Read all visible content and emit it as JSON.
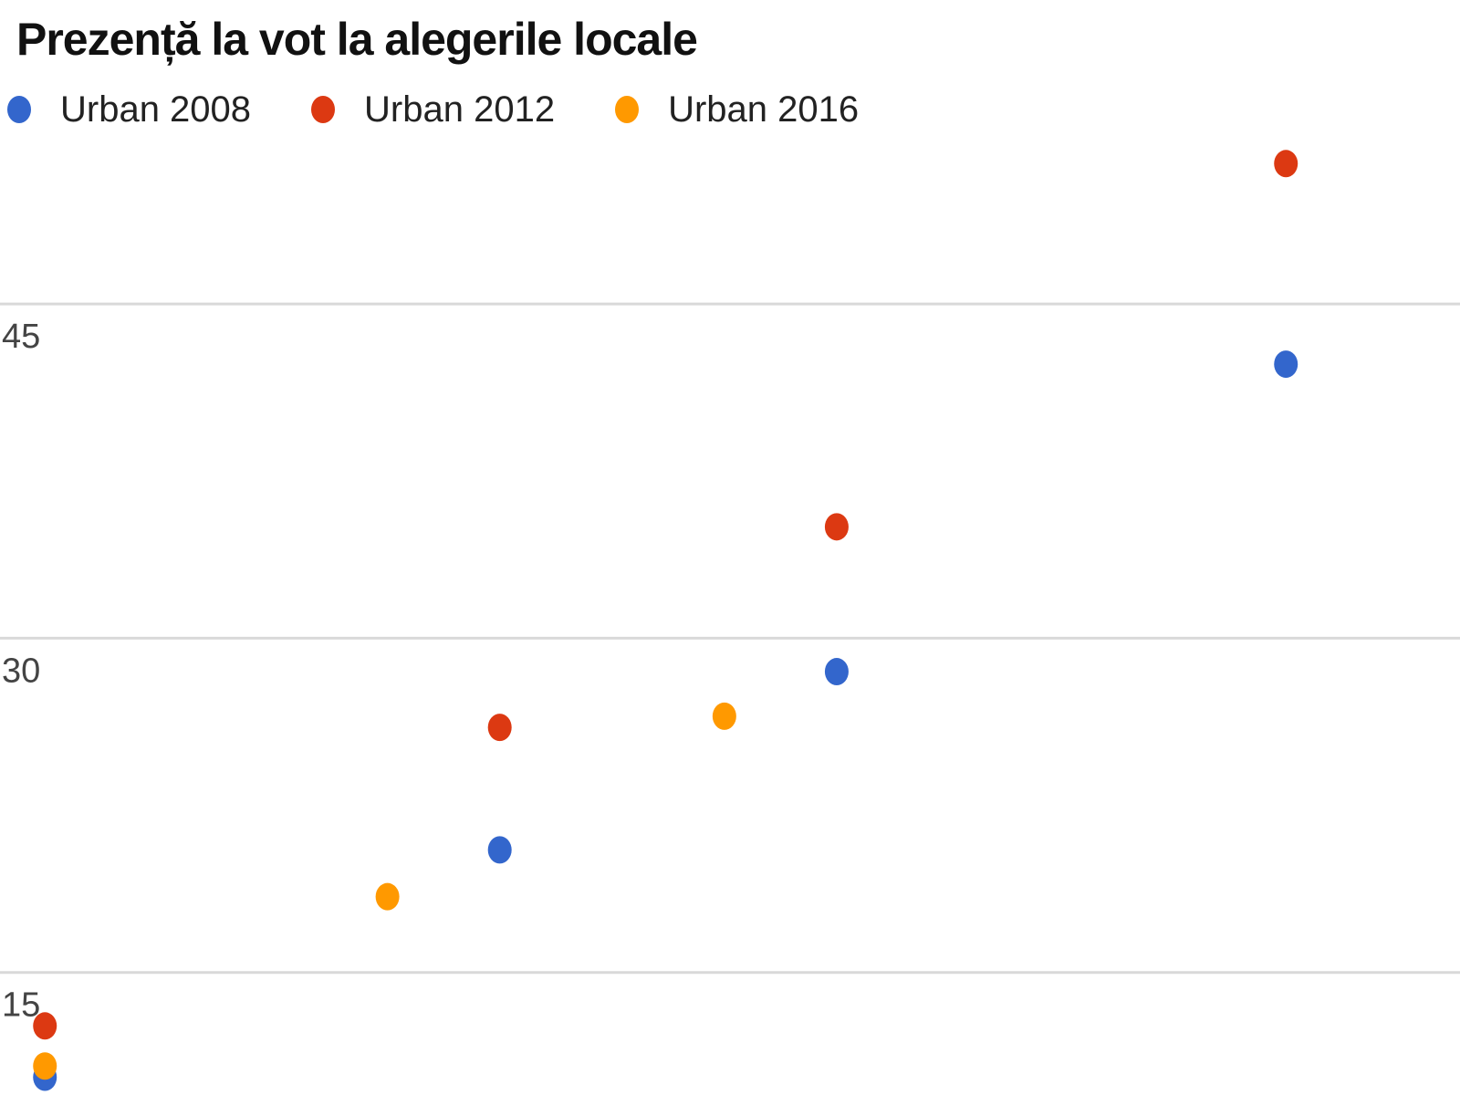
{
  "chart_data": {
    "type": "scatter",
    "title": "Prezență la vot la alegerile locale",
    "xlabel": "",
    "ylabel": "",
    "ylim": [
      9.5,
      52.5
    ],
    "yticks": [
      15,
      30,
      45
    ],
    "xlim": [
      0,
      13
    ],
    "grid": true,
    "legend_position": "top-left",
    "series": [
      {
        "name": "Urban 2008",
        "color": "#3366cc",
        "x": [
          0.4,
          4.45,
          7.45,
          11.45
        ],
        "y": [
          10.3,
          20.5,
          28.5,
          42.3
        ]
      },
      {
        "name": "Urban 2012",
        "color": "#dc3912",
        "x": [
          0.4,
          4.45,
          7.45,
          11.45
        ],
        "y": [
          12.6,
          26.0,
          35.0,
          51.3
        ]
      },
      {
        "name": "Urban 2016",
        "color": "#ff9900",
        "x": [
          0.4,
          3.45,
          6.45
        ],
        "y": [
          10.8,
          18.4,
          26.5
        ]
      }
    ]
  }
}
